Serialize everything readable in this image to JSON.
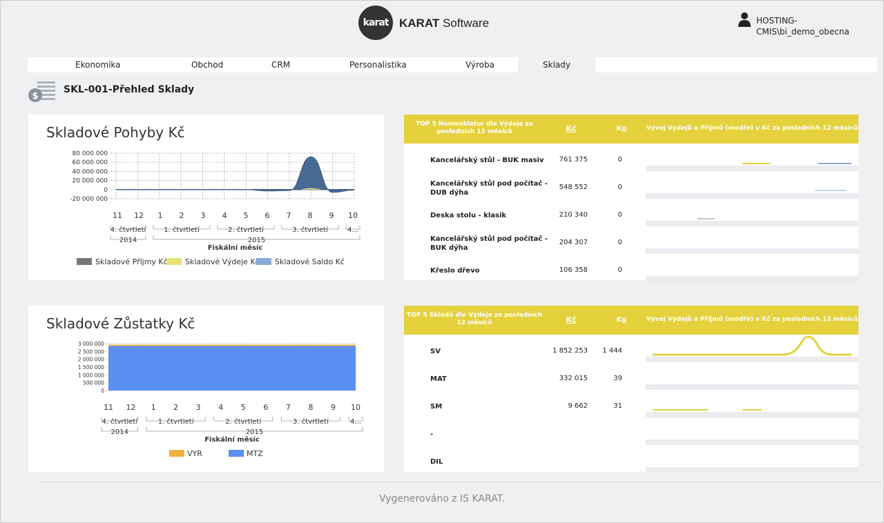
{
  "header": {
    "logo_text": "karat",
    "brand_bold": "KARAT",
    "brand_rest": " Software",
    "user_line1": "HOSTING-",
    "user_line2": "CMIS\\bi_demo_obecna"
  },
  "nav": {
    "tabs": [
      {
        "label": "Ekonomika"
      },
      {
        "label": "Obchod"
      },
      {
        "label": "CRM"
      },
      {
        "label": "Personalistika"
      },
      {
        "label": "Výroba"
      },
      {
        "label": "Sklady",
        "active": true
      }
    ]
  },
  "page": {
    "title": "SKL-001-Přehled Sklady"
  },
  "chart1": {
    "title": "Skladové Pohyby Kč",
    "y_ticks": [
      "80 000 000",
      "60 000 000",
      "40 000 000",
      "20 000 000",
      "0",
      "-20 000 000"
    ],
    "x_ticks": [
      "11",
      "12",
      "1",
      "2",
      "3",
      "4",
      "5",
      "6",
      "7",
      "8",
      "9",
      "10"
    ],
    "quarters": [
      "4. čtvrtletí",
      "1. čtvrtletí",
      "2. čtvrtletí",
      "3. čtvrtletí",
      "4..."
    ],
    "years": [
      "2014",
      "2015"
    ],
    "xlabel": "Fiskální měsíc",
    "legend": [
      "Skladové Příjmy Kč",
      "Skladové Výdeje Kč",
      "Skladové Saldo Kč"
    ]
  },
  "chart2": {
    "title": "Skladové Zůstatky Kč",
    "y_ticks": [
      "3 000 000",
      "2 500 000",
      "2 000 000",
      "1 500 000",
      "1 000 000",
      "500 000",
      "0"
    ],
    "x_ticks": [
      "11",
      "12",
      "1",
      "2",
      "3",
      "4",
      "5",
      "6",
      "7",
      "8",
      "9",
      "10"
    ],
    "quarters": [
      "4. čtvrtletí",
      "1. čtvrtletí",
      "2. čtvrtletí",
      "3. čtvrtletí",
      "4..."
    ],
    "years": [
      "2014",
      "2015"
    ],
    "xlabel": "Fiskální měsíc",
    "legend": [
      "VYR",
      "MTZ"
    ]
  },
  "chart_data": [
    {
      "type": "area",
      "title": "Skladové Pohyby Kč",
      "x": [
        "11",
        "12",
        "1",
        "2",
        "3",
        "4",
        "5",
        "6",
        "7",
        "8",
        "9",
        "10"
      ],
      "xlabel": "Fiskální měsíc",
      "ylim": [
        -20000000,
        80000000
      ],
      "series": [
        {
          "name": "Skladové Příjmy Kč",
          "color": "#767676",
          "values": [
            0,
            0,
            0,
            0,
            0,
            0,
            0,
            0,
            0,
            0,
            0,
            0
          ]
        },
        {
          "name": "Skladové Výdeje Kč",
          "color": "#e9e07a",
          "values": [
            0,
            0,
            0,
            0,
            0,
            0,
            0,
            0,
            0,
            0,
            0,
            0
          ]
        },
        {
          "name": "Skladové Saldo Kč",
          "color": "#8aaad6",
          "values": [
            0,
            0,
            0,
            0,
            0,
            0,
            0,
            -3000000,
            -2000000,
            72000000,
            -6000000,
            -1000000
          ]
        }
      ],
      "grid": true,
      "legend_position": "bottom"
    },
    {
      "type": "area",
      "title": "Skladové Zůstatky Kč",
      "x": [
        "11",
        "12",
        "1",
        "2",
        "3",
        "4",
        "5",
        "6",
        "7",
        "8",
        "9",
        "10"
      ],
      "xlabel": "Fiskální měsíc",
      "ylim": [
        0,
        3000000
      ],
      "series": [
        {
          "name": "MTZ",
          "color": "#5b8ff0",
          "values": [
            2850000,
            2850000,
            2850000,
            2850000,
            2850000,
            2850000,
            2850000,
            2850000,
            2850000,
            2850000,
            2850000,
            2850000
          ]
        },
        {
          "name": "VYR",
          "color": "#eeb040",
          "values": [
            80000,
            80000,
            80000,
            80000,
            80000,
            80000,
            80000,
            80000,
            80000,
            80000,
            80000,
            80000
          ]
        }
      ],
      "grid": true,
      "legend_position": "bottom"
    }
  ],
  "table1": {
    "header": {
      "name": "TOP 5 Nomenklatur dle Výdeje za posledních 12 měsíců",
      "kc": "Kč",
      "kg": "Kg",
      "trend": "Vývoj Výdejů a Příjmů (modře) v Kč za posledních 12 měsíců"
    },
    "rows": [
      {
        "name": "Kancelářský stůl - BUK masiv",
        "kc": "761 375",
        "kg": "0"
      },
      {
        "name": "Kancelářský stůl pod počítač - DUB dýha",
        "kc": "548 552",
        "kg": "0"
      },
      {
        "name": "Deska stolu - klasik",
        "kc": "210 340",
        "kg": "0"
      },
      {
        "name": "Kancelářský stůl pod počítač - BUK dýha",
        "kc": "204 307",
        "kg": "0"
      },
      {
        "name": "Křeslo dřevo",
        "kc": "106 358",
        "kg": "0"
      }
    ]
  },
  "table2": {
    "header": {
      "name": "TOP 5 Skladů dle Výdeje za posledních 12 měsíců",
      "kc": "Kč",
      "kg": "Kg",
      "trend": "Vývoj Výdejů a Příjmů (modře) v Kč za posledních 12 měsíců"
    },
    "rows": [
      {
        "name": "SV",
        "kc": "1 852 253",
        "kg": "1 444"
      },
      {
        "name": "MAT",
        "kc": "332 015",
        "kg": "39"
      },
      {
        "name": "SM",
        "kc": "9 662",
        "kg": "31"
      },
      {
        "name": "-",
        "kc": "",
        "kg": ""
      },
      {
        "name": "DIL",
        "kc": "",
        "kg": ""
      }
    ]
  },
  "colors": {
    "accent_yellow": "#e4d13c",
    "saldo_blue": "#8aaad6",
    "saldo_dark": "#4a6a96",
    "mtz_blue": "#5b8ff0",
    "vyr_orange": "#eeb040"
  },
  "footer": {
    "text": "Vygenerováno z IS KARAT."
  }
}
